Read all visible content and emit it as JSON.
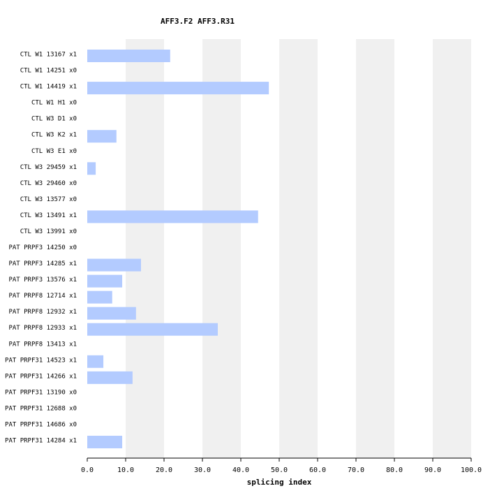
{
  "chart_data": {
    "type": "hbar",
    "title": "AFF3.F2  AFF3.R31",
    "x_label": "splicing index",
    "categories": [
      "CTL W1 13167 x1",
      "CTL W1 14251 x0",
      "CTL W1 14419 x1",
      "CTL W1 H1 x0",
      "CTL W3 D1 x0",
      "CTL W3 K2 x1",
      "CTL W3 E1 x0",
      "CTL W3 29459 x1",
      "CTL W3 29460 x0",
      "CTL W3 13577 x0",
      "CTL W3 13491 x1",
      "CTL W3 13991 x0",
      "PAT PRPF3 14250 x0",
      "PAT PRPF3 14285 x1",
      "PAT PRPF3 13576 x1",
      "PAT PRPF8 12714 x1",
      "PAT PRPF8 12932 x1",
      "PAT PRPF8 12933 x1",
      "PAT PRPF8 13413 x1",
      "PAT PRPF31 14523 x1",
      "PAT PRPF31 14266 x1",
      "PAT PRPF31 13190 x0",
      "PAT PRPF31 12688 x0",
      "PAT PRPF31 14686 x0",
      "PAT PRPF31 14284 x1"
    ],
    "values": [
      21.6,
      0,
      47.3,
      0,
      0,
      7.6,
      0,
      2.2,
      0,
      0,
      44.5,
      0,
      0,
      14.0,
      9.1,
      6.5,
      12.7,
      34.0,
      0,
      4.2,
      11.8,
      0,
      0,
      0,
      9.1
    ],
    "color": "#b3cbff",
    "xlim": [
      0,
      100
    ],
    "xticks": [
      {
        "value": 0,
        "label": "0.0"
      },
      {
        "value": 10,
        "label": "10.0"
      },
      {
        "value": 20,
        "label": "20.0"
      },
      {
        "value": 30,
        "label": "30.0"
      },
      {
        "value": 40,
        "label": "40.0"
      },
      {
        "value": 50,
        "label": "50.0"
      },
      {
        "value": 60,
        "label": "60.0"
      },
      {
        "value": 70,
        "label": "70.0"
      },
      {
        "value": 80,
        "label": "80.0"
      },
      {
        "value": 90,
        "label": "90.0"
      },
      {
        "value": 100,
        "label": "100.0"
      }
    ],
    "grid": "alternating-bands",
    "band_color": "#f0f0f0"
  }
}
